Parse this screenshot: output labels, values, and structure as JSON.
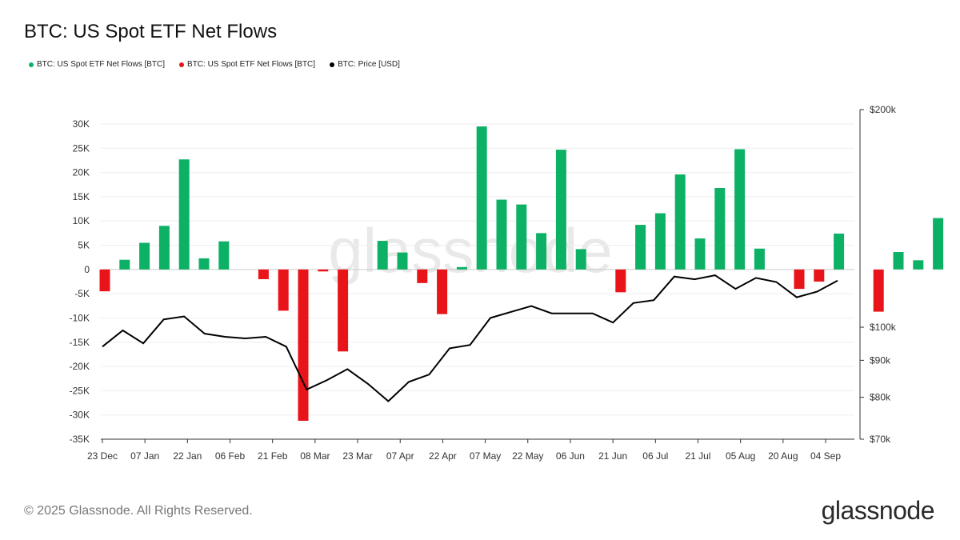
{
  "title": "BTC: US Spot ETF Net Flows",
  "legend": [
    {
      "label": "BTC: US Spot ETF Net Flows [BTC]",
      "color": "#0db165"
    },
    {
      "label": "BTC: US Spot ETF Net Flows [BTC]",
      "color": "#e8141a"
    },
    {
      "label": "BTC: Price [USD]",
      "color": "#000000"
    }
  ],
  "watermark": "glassnode",
  "footer": {
    "copyright": "© 2025 Glassnode. All Rights Reserved.",
    "logo": "glassnode"
  },
  "chart_data": {
    "type": "bar",
    "colors": {
      "positive": "#0db165",
      "negative": "#e8141a",
      "price": "#000000"
    },
    "x_ticks": [
      "23 Dec",
      "07 Jan",
      "22 Jan",
      "06 Feb",
      "21 Feb",
      "08 Mar",
      "23 Mar",
      "07 Apr",
      "22 Apr",
      "07 May",
      "22 May",
      "06 Jun",
      "21 Jun",
      "06 Jul",
      "21 Jul",
      "05 Aug",
      "20 Aug",
      "04 Sep"
    ],
    "y_left_ticks": [
      "30K",
      "25K",
      "20K",
      "15K",
      "10K",
      "5K",
      "0",
      "-5K",
      "-10K",
      "-15K",
      "-20K",
      "-25K",
      "-30K",
      "-35K"
    ],
    "y_left_values": [
      30000,
      25000,
      20000,
      15000,
      10000,
      5000,
      0,
      -5000,
      -10000,
      -15000,
      -20000,
      -25000,
      -30000,
      -35000
    ],
    "y_left_range": [
      -35000,
      30000
    ],
    "y_right_ticks": [
      {
        "label": "$200k",
        "value": 200000
      },
      {
        "label": "$100k",
        "value": 100000
      },
      {
        "label": "$90k",
        "value": 90000
      },
      {
        "label": "$80k",
        "value": 80000
      },
      {
        "label": "$70k",
        "value": 70000
      }
    ],
    "y_right_scale": "log",
    "y_right_range": [
      70000,
      200000
    ],
    "grid": true,
    "legend_position": "top-left",
    "net_flows_btc": [
      -4500,
      2000,
      5500,
      9000,
      22700,
      2300,
      5800,
      null,
      -2000,
      -8500,
      -31200,
      -400,
      -16900,
      null,
      5900,
      3500,
      -2800,
      -9200,
      500,
      29500,
      14400,
      13400,
      7500,
      24700,
      4200,
      null,
      -4700,
      9200,
      11600,
      19600,
      6400,
      16800,
      24800,
      4300,
      null,
      -4000,
      -2500,
      7400,
      null,
      -8700,
      3600,
      1900,
      10600
    ],
    "price_usd": [
      94000,
      99000,
      95000,
      102500,
      103500,
      98000,
      97000,
      96500,
      97000,
      94000,
      82000,
      84500,
      87500,
      83500,
      79000,
      84000,
      86000,
      93500,
      94500,
      103000,
      105000,
      107000,
      104500,
      104500,
      104500,
      101500,
      108000,
      109000,
      117500,
      116500,
      118000,
      113000,
      117000,
      115500,
      110000,
      112000,
      116000
    ]
  }
}
